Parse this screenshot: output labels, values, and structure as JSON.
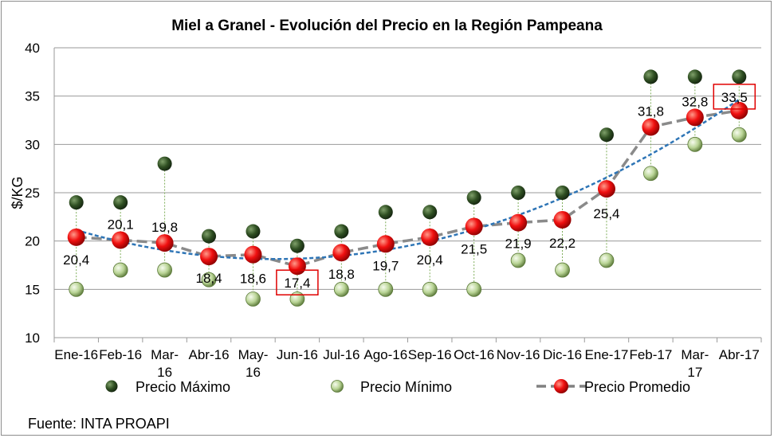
{
  "chart_data": {
    "type": "scatter",
    "title": "Miel a Granel - Evolución del Precio en la Región Pampeana",
    "ylabel": "$/KG",
    "xlabel": "",
    "ylim": [
      10,
      40
    ],
    "yticks": [
      "10",
      "15",
      "20",
      "25",
      "30",
      "35",
      "40"
    ],
    "grid": true,
    "legend_position": "bottom",
    "categories": [
      "Ene-16",
      "Feb-16",
      "Mar-16",
      "Abr-16",
      "May-16",
      "Jun-16",
      "Jul-16",
      "Ago-16",
      "Sep-16",
      "Oct-16",
      "Nov-16",
      "Dic-16",
      "Ene-17",
      "Feb-17",
      "Mar-17",
      "Abr-17"
    ],
    "series": [
      {
        "name": "Precio Máximo",
        "values": [
          24,
          24,
          28,
          20.5,
          21,
          19.5,
          21,
          23,
          23,
          24.5,
          25,
          25,
          31,
          37,
          37,
          37
        ],
        "color": "#2d4a1e"
      },
      {
        "name": "Precio Mínimo",
        "values": [
          15,
          17,
          17,
          16,
          14,
          14,
          15,
          15,
          15,
          15,
          18,
          17,
          18,
          27,
          30,
          31
        ],
        "color": "#c6dca6"
      },
      {
        "name": "Precio Promedio",
        "values": [
          20.4,
          20.1,
          19.8,
          18.4,
          18.6,
          17.4,
          18.8,
          19.7,
          20.4,
          21.5,
          21.9,
          22.2,
          25.4,
          31.8,
          32.8,
          33.5
        ],
        "color": "#e60000"
      }
    ],
    "data_labels": [
      "20,4",
      "20,1",
      "19,8",
      "18,4",
      "18,6",
      "17,4",
      "18,8",
      "19,7",
      "20,4",
      "21,5",
      "21,9",
      "22,2",
      "25,4",
      "31,8",
      "32,8",
      "33,5"
    ],
    "highlighted_labels": [
      "17,4",
      "33,5"
    ],
    "trendline": {
      "type": "polynomial",
      "color": "#2e75b6"
    }
  },
  "footer": {
    "source": "Fuente: INTA PROAPI"
  }
}
